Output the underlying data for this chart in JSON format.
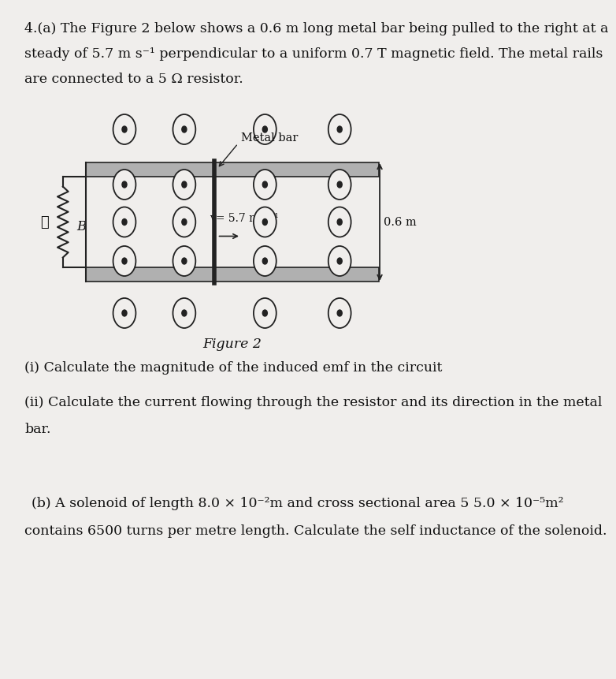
{
  "page_bg": "#f0eeec",
  "text_color": "#111111",
  "fs_body": 12.5,
  "fs_small": 10.5,
  "fs_diagram": 10.0,
  "line1": "4.(a) The Figure 2 below shows a 0.6 m long metal bar being pulled to the right at a",
  "line2": "steady of 5.7 m s⁻¹ perpendicular to a uniform 0.7 T magnetic field. The metal rails",
  "line3": "are connected to a 5 Ω resistor.",
  "figure_label": "Figure 2",
  "q_i": "(i) Calculate the magnitude of the induced emf in the circuit",
  "q_ii_1": "(ii) Calculate the current flowing through the resistor and its direction in the metal",
  "q_ii_2": "bar.",
  "q_b_1": "(b) A solenoid of length 8.0 × 10⁻²m and cross sectional area 5 5.0 × 10⁻⁵m²",
  "q_b_2": "contains 6500 turns per metre length. Calculate the self inductance of the solenoid.",
  "metal_bar_label": "Metal bar",
  "velocity_label": "v= 5.7 m s⁻¹",
  "length_label": "0.6 m",
  "B_label": "B",
  "l_label": "ℓ",
  "rail_fill": "#b0b0b0",
  "rail_edge": "#222222",
  "bar_color": "#222222",
  "dot_color": "#222222",
  "dot_bg": "#f0eeec"
}
